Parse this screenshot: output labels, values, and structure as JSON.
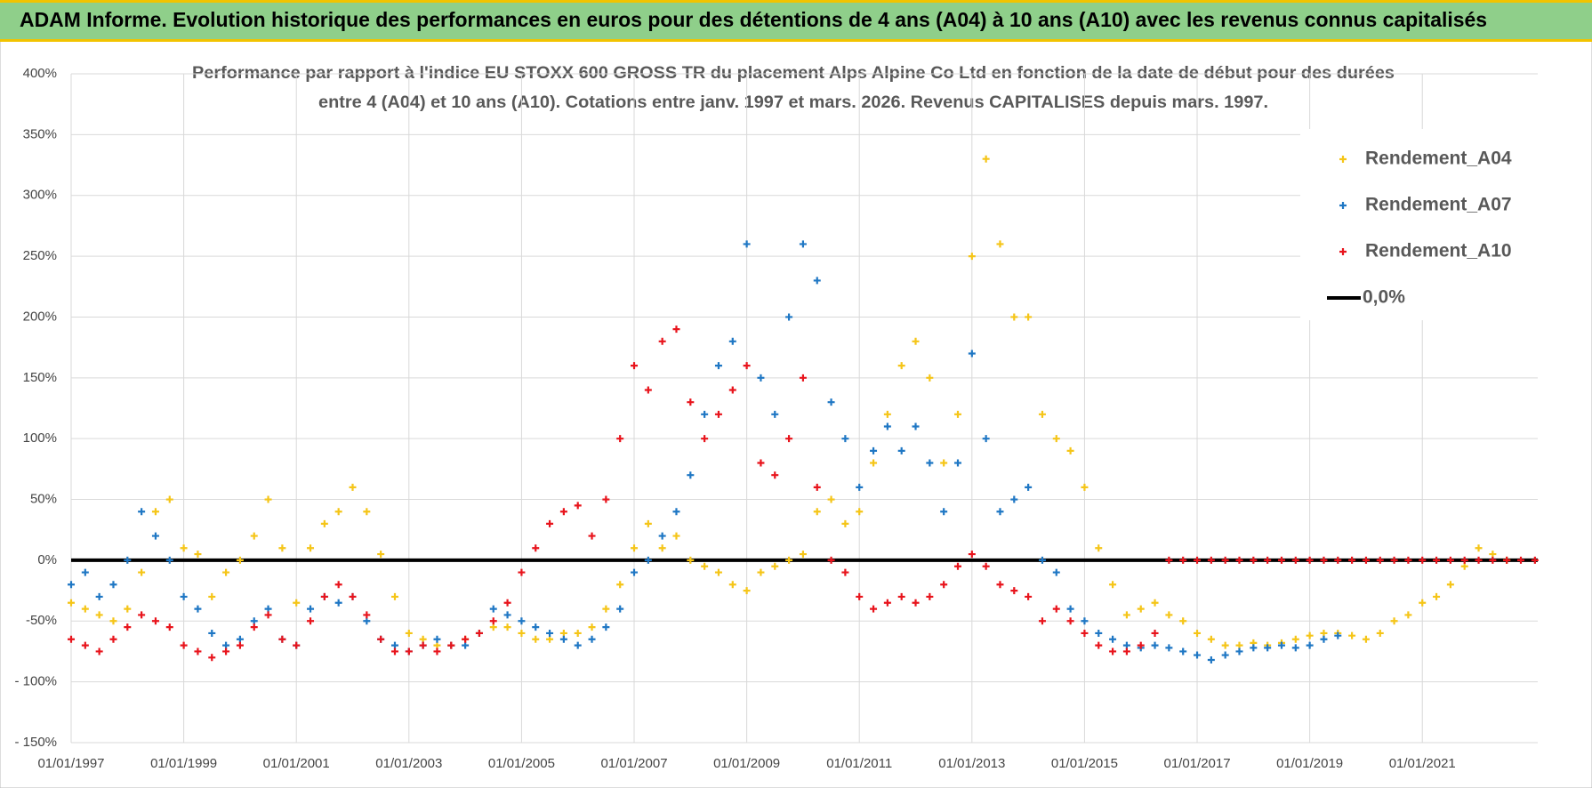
{
  "chart_data": {
    "type": "scatter",
    "title": "ADAM Informe. Evolution historique des performances en euros pour des détentions de 4 ans (A04) à 10 ans (A10) avec les revenus connus capitalisés",
    "subtitle": [
      "Performance par rapport à l'indice EU STOXX 600 GROSS TR  du placement Alps Alpine Co Ltd en fonction de la date de début pour des durées",
      "entre 4 (A04) et 10 ans (A10).  Cotations entre janv. 1997 et mars. 2026.  Revenus CAPITALISES depuis mars. 1997."
    ],
    "xlim": [
      1997,
      2023.05
    ],
    "xticks": [
      {
        "value": 1997,
        "label": "01/01/1997"
      },
      {
        "value": 1999,
        "label": "01/01/1999"
      },
      {
        "value": 2001,
        "label": "01/01/2001"
      },
      {
        "value": 2003,
        "label": "01/01/2003"
      },
      {
        "value": 2005,
        "label": "01/01/2005"
      },
      {
        "value": 2007,
        "label": "01/01/2007"
      },
      {
        "value": 2009,
        "label": "01/01/2009"
      },
      {
        "value": 2011,
        "label": "01/01/2011"
      },
      {
        "value": 2013,
        "label": "01/01/2013"
      },
      {
        "value": 2015,
        "label": "01/01/2015"
      },
      {
        "value": 2017,
        "label": "01/01/2017"
      },
      {
        "value": 2019,
        "label": "01/01/2019"
      },
      {
        "value": 2021,
        "label": "01/01/2021"
      }
    ],
    "ylim": [
      -150,
      400
    ],
    "yticks": [
      {
        "value": 400,
        "label": "400%"
      },
      {
        "value": 350,
        "label": "350%"
      },
      {
        "value": 300,
        "label": "300%"
      },
      {
        "value": 250,
        "label": "250%"
      },
      {
        "value": 200,
        "label": "200%"
      },
      {
        "value": 150,
        "label": "150%"
      },
      {
        "value": 100,
        "label": "100%"
      },
      {
        "value": 50,
        "label": "50%"
      },
      {
        "value": 0,
        "label": "0%"
      },
      {
        "value": -50,
        "label": "-50%"
      },
      {
        "value": -100,
        "label": "- 100%"
      },
      {
        "value": -150,
        "label": "- 150%"
      }
    ],
    "grid": true,
    "legend": "upper right",
    "zero_line": {
      "name": "0,0%",
      "value": 0,
      "color": "#000000"
    },
    "series": [
      {
        "name": "Rendement_A04",
        "color": "#f5c518",
        "x": [
          1997,
          1997.25,
          1997.5,
          1997.75,
          1998,
          1998.25,
          1998.5,
          1998.75,
          1999,
          1999.25,
          1999.5,
          1999.75,
          2000,
          2000.25,
          2000.5,
          2000.75,
          2001,
          2001.25,
          2001.5,
          2001.75,
          2002,
          2002.25,
          2002.5,
          2002.75,
          2003,
          2003.25,
          2003.5,
          2003.75,
          2004,
          2004.25,
          2004.5,
          2004.75,
          2005,
          2005.25,
          2005.5,
          2005.75,
          2006,
          2006.25,
          2006.5,
          2006.75,
          2007,
          2007.25,
          2007.5,
          2007.75,
          2008,
          2008.25,
          2008.5,
          2008.75,
          2009,
          2009.25,
          2009.5,
          2009.75,
          2010,
          2010.25,
          2010.5,
          2010.75,
          2011,
          2011.25,
          2011.5,
          2011.75,
          2012,
          2012.25,
          2012.5,
          2012.75,
          2013,
          2013.25,
          2013.5,
          2013.75,
          2014,
          2014.25,
          2014.5,
          2014.75,
          2015,
          2015.25,
          2015.5,
          2015.75,
          2016,
          2016.25,
          2016.5,
          2016.75,
          2017,
          2017.25,
          2017.5,
          2017.75,
          2018,
          2018.25,
          2018.5,
          2018.75,
          2019,
          2019.25,
          2019.5,
          2019.75,
          2020,
          2020.25,
          2020.5,
          2020.75,
          2021,
          2021.25,
          2021.5,
          2021.75,
          2022,
          2022.25,
          2022.5
        ],
        "values": [
          -35,
          -40,
          -45,
          -50,
          -40,
          -10,
          40,
          50,
          10,
          5,
          -30,
          -10,
          0,
          20,
          50,
          10,
          -35,
          10,
          30,
          40,
          60,
          40,
          5,
          -30,
          -60,
          -65,
          -70,
          -70,
          -65,
          -60,
          -55,
          -55,
          -60,
          -65,
          -65,
          -60,
          -60,
          -55,
          -40,
          -20,
          10,
          30,
          10,
          20,
          0,
          -5,
          -10,
          -20,
          -25,
          -10,
          -5,
          0,
          5,
          40,
          50,
          30,
          40,
          80,
          120,
          160,
          180,
          150,
          80,
          120,
          250,
          330,
          260,
          200,
          200,
          120,
          100,
          90,
          60,
          10,
          -20,
          -45,
          -40,
          -35,
          -45,
          -50,
          -60,
          -65,
          -70,
          -70,
          -68,
          -70,
          -68,
          -65,
          -62,
          -60,
          -60,
          -62,
          -65,
          -60,
          -50,
          -45,
          -35,
          -30,
          -20,
          -5,
          10,
          5,
          0
        ]
      },
      {
        "name": "Rendement_A07",
        "color": "#1f77c4",
        "x": [
          1997,
          1997.25,
          1997.5,
          1997.75,
          1998,
          1998.25,
          1998.5,
          1998.75,
          1999,
          1999.25,
          1999.5,
          1999.75,
          2000,
          2000.25,
          2000.5,
          2000.75,
          2001,
          2001.25,
          2001.5,
          2001.75,
          2002,
          2002.25,
          2002.5,
          2002.75,
          2003,
          2003.25,
          2003.5,
          2003.75,
          2004,
          2004.25,
          2004.5,
          2004.75,
          2005,
          2005.25,
          2005.5,
          2005.75,
          2006,
          2006.25,
          2006.5,
          2006.75,
          2007,
          2007.25,
          2007.5,
          2007.75,
          2008,
          2008.25,
          2008.5,
          2008.75,
          2009,
          2009.25,
          2009.5,
          2009.75,
          2010,
          2010.25,
          2010.5,
          2010.75,
          2011,
          2011.25,
          2011.5,
          2011.75,
          2012,
          2012.25,
          2012.5,
          2012.75,
          2013,
          2013.25,
          2013.5,
          2013.75,
          2014,
          2014.25,
          2014.5,
          2014.75,
          2015,
          2015.25,
          2015.5,
          2015.75,
          2016,
          2016.25,
          2016.5,
          2016.75,
          2017,
          2017.25,
          2017.5,
          2017.75,
          2018,
          2018.25,
          2018.5,
          2018.75,
          2019,
          2019.25,
          2019.5
        ],
        "values": [
          -20,
          -10,
          -30,
          -20,
          0,
          40,
          20,
          0,
          -30,
          -40,
          -60,
          -70,
          -65,
          -50,
          -40,
          -65,
          -70,
          -40,
          -30,
          -35,
          -30,
          -50,
          -65,
          -70,
          -75,
          -70,
          -65,
          -70,
          -70,
          -60,
          -40,
          -45,
          -50,
          -55,
          -60,
          -65,
          -70,
          -65,
          -55,
          -40,
          -10,
          0,
          20,
          40,
          70,
          120,
          160,
          180,
          260,
          150,
          120,
          200,
          260,
          230,
          130,
          100,
          60,
          90,
          110,
          90,
          110,
          80,
          40,
          80,
          170,
          100,
          40,
          50,
          60,
          0,
          -10,
          -40,
          -50,
          -60,
          -65,
          -70,
          -72,
          -70,
          -72,
          -75,
          -78,
          -82,
          -78,
          -75,
          -72,
          -72,
          -70,
          -72,
          -70,
          -65,
          -62
        ]
      },
      {
        "name": "Rendement_A10",
        "color": "#e8141c",
        "x": [
          1997,
          1997.25,
          1997.5,
          1997.75,
          1998,
          1998.25,
          1998.5,
          1998.75,
          1999,
          1999.25,
          1999.5,
          1999.75,
          2000,
          2000.25,
          2000.5,
          2000.75,
          2001,
          2001.25,
          2001.5,
          2001.75,
          2002,
          2002.25,
          2002.5,
          2002.75,
          2003,
          2003.25,
          2003.5,
          2003.75,
          2004,
          2004.25,
          2004.5,
          2004.75,
          2005,
          2005.25,
          2005.5,
          2005.75,
          2006,
          2006.25,
          2006.5,
          2006.75,
          2007,
          2007.25,
          2007.5,
          2007.75,
          2008,
          2008.25,
          2008.5,
          2008.75,
          2009,
          2009.25,
          2009.5,
          2009.75,
          2010,
          2010.25,
          2010.5,
          2010.75,
          2011,
          2011.25,
          2011.5,
          2011.75,
          2012,
          2012.25,
          2012.5,
          2012.75,
          2013,
          2013.25,
          2013.5,
          2013.75,
          2014,
          2014.25,
          2014.5,
          2014.75,
          2015,
          2015.25,
          2015.5,
          2015.75,
          2016,
          2016.25,
          2016.5,
          2016.75,
          2017,
          2017.25,
          2017.5,
          2017.75,
          2018,
          2018.25,
          2018.5,
          2018.75,
          2019,
          2019.25,
          2019.5,
          2019.75,
          2020,
          2020.25,
          2020.5,
          2020.75,
          2021,
          2021.25,
          2021.5,
          2021.75,
          2022,
          2022.25,
          2022.5,
          2022.75,
          2023
        ],
        "values": [
          -65,
          -70,
          -75,
          -65,
          -55,
          -45,
          -50,
          -55,
          -70,
          -75,
          -80,
          -75,
          -70,
          -55,
          -45,
          -65,
          -70,
          -50,
          -30,
          -20,
          -30,
          -45,
          -65,
          -75,
          -75,
          -70,
          -75,
          -70,
          -65,
          -60,
          -50,
          -35,
          -10,
          10,
          30,
          40,
          45,
          20,
          50,
          100,
          160,
          140,
          180,
          190,
          130,
          100,
          120,
          140,
          160,
          80,
          70,
          100,
          150,
          60,
          0,
          -10,
          -30,
          -40,
          -35,
          -30,
          -35,
          -30,
          -20,
          -5,
          5,
          -5,
          -20,
          -25,
          -30,
          -50,
          -40,
          -50,
          -60,
          -70,
          -75,
          -75,
          -70,
          -60,
          0,
          0,
          0,
          0,
          0,
          0,
          0,
          0,
          0,
          0,
          0,
          0,
          0,
          0,
          0,
          0,
          0,
          0,
          0,
          0,
          0,
          0,
          0,
          0,
          0,
          0,
          0
        ]
      }
    ]
  }
}
